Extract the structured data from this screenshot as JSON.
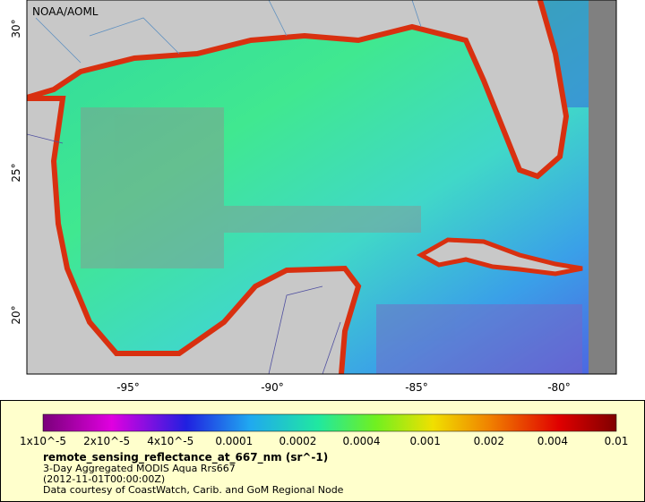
{
  "map": {
    "credit": "NOAA/AOML",
    "lat_labels": [
      "20°",
      "25°",
      "30°"
    ],
    "lon_labels": [
      "-95°",
      "-90°",
      "-85°",
      "-80°"
    ]
  },
  "legend": {
    "labels": [
      "1x10^-5",
      "2x10^-5",
      "4x10^-5",
      "0.0001",
      "0.0002",
      "0.0004",
      "0.001",
      "0.002",
      "0.004",
      "0.01"
    ],
    "variable": "remote_sensing_reflectance_at_667_nm (sr^-1)",
    "lines": [
      "3-Day Aggregated MODIS Aqua Rrs667",
      "(2012-11-01T00:00:00Z)",
      "Data courtesy of CoastWatch, Carib. and GoM Regional Node"
    ]
  }
}
